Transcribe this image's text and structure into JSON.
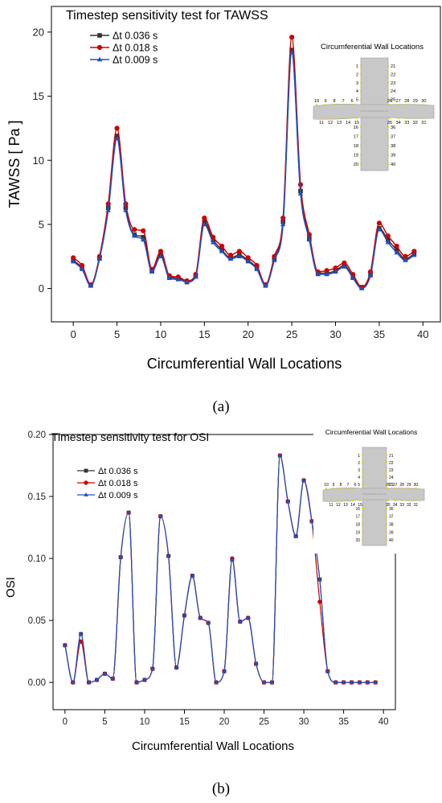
{
  "chart_data": [
    {
      "type": "line",
      "title": "Timestep sensitivity test for TAWSS",
      "xlabel": "Circumferential Wall Locations",
      "ylabel": "TAWSS [ Pa ]",
      "xlim": [
        -2.5,
        42
      ],
      "ylim": [
        -2.6,
        22
      ],
      "xticks": [
        0,
        5,
        10,
        15,
        20,
        25,
        30,
        35,
        40
      ],
      "yticks": [
        0,
        5,
        10,
        15,
        20
      ],
      "tick_labels_x": [
        "0",
        "5",
        "10",
        "15",
        "20",
        "25",
        "30",
        "35",
        "40"
      ],
      "tick_labels_y": [
        "0",
        "5",
        "10",
        "15",
        "20"
      ],
      "legend_position": "top-left",
      "caption": "(a)",
      "inset_title": "Circumferential Wall Locations",
      "x": [
        0,
        1,
        2,
        3,
        4,
        5,
        6,
        7,
        8,
        9,
        10,
        11,
        12,
        13,
        14,
        15,
        16,
        17,
        18,
        19,
        20,
        21,
        22,
        23,
        24,
        25,
        26,
        27,
        28,
        29,
        30,
        31,
        32,
        33,
        34,
        35,
        36,
        37,
        38,
        39
      ],
      "series": [
        {
          "name": "Δt 0.036 s",
          "color": "#333333",
          "marker": "square",
          "values": [
            2.2,
            1.6,
            0.3,
            2.4,
            6.3,
            11.9,
            6.3,
            4.2,
            4.0,
            1.4,
            2.6,
            0.9,
            0.8,
            0.5,
            1.0,
            5.2,
            3.8,
            3.0,
            2.4,
            2.6,
            2.2,
            1.6,
            0.3,
            2.3,
            5.2,
            18.6,
            7.6,
            3.9,
            1.2,
            1.2,
            1.4,
            1.8,
            0.9,
            0.1,
            1.1,
            4.7,
            3.8,
            3.0,
            2.3,
            2.7
          ]
        },
        {
          "name": "Δt 0.018 s",
          "color": "#d00000",
          "marker": "circle",
          "values": [
            2.4,
            1.8,
            0.3,
            2.5,
            6.6,
            12.5,
            6.6,
            4.6,
            4.5,
            1.5,
            2.9,
            1.0,
            0.9,
            0.6,
            1.1,
            5.5,
            4.0,
            3.3,
            2.6,
            2.9,
            2.4,
            1.8,
            0.3,
            2.5,
            5.5,
            19.6,
            8.1,
            4.2,
            1.3,
            1.4,
            1.6,
            2.0,
            1.1,
            0.1,
            1.3,
            5.1,
            4.1,
            3.3,
            2.5,
            2.9
          ]
        },
        {
          "name": "Δt 0.009 s",
          "color": "#2050c0",
          "marker": "triangle",
          "values": [
            2.1,
            1.5,
            0.2,
            2.3,
            6.1,
            11.7,
            6.1,
            4.1,
            3.8,
            1.3,
            2.5,
            0.8,
            0.7,
            0.5,
            0.9,
            5.0,
            3.6,
            2.9,
            2.3,
            2.5,
            2.1,
            1.5,
            0.2,
            2.2,
            5.0,
            18.4,
            7.4,
            3.8,
            1.1,
            1.1,
            1.3,
            1.7,
            0.8,
            0.0,
            1.0,
            4.6,
            3.6,
            2.8,
            2.2,
            2.6
          ]
        }
      ]
    },
    {
      "type": "line",
      "title": "Timestep sensitivity test for OSI",
      "xlabel": "Circumferential Wall Locations",
      "ylabel": "OSI",
      "xlim": [
        -1.5,
        41.5
      ],
      "ylim": [
        -0.022,
        0.2
      ],
      "xticks": [
        0,
        5,
        10,
        15,
        20,
        25,
        30,
        35,
        40
      ],
      "yticks": [
        0.0,
        0.05,
        0.1,
        0.15,
        0.2
      ],
      "tick_labels_x": [
        "0",
        "5",
        "10",
        "15",
        "20",
        "25",
        "30",
        "35",
        "40"
      ],
      "tick_labels_y": [
        "0.00",
        "0.05",
        "0.10",
        "0.15",
        "0.20"
      ],
      "legend_position": "top-left",
      "caption": "(b)",
      "inset_title": "Circumferential Wall Locations",
      "x": [
        0,
        1,
        2,
        3,
        4,
        5,
        6,
        7,
        8,
        9,
        10,
        11,
        12,
        13,
        14,
        15,
        16,
        17,
        18,
        19,
        20,
        21,
        22,
        23,
        24,
        25,
        26,
        27,
        28,
        29,
        30,
        31,
        32,
        33,
        34,
        35,
        36,
        37,
        38,
        39
      ],
      "series": [
        {
          "name": "Δt 0.036 s",
          "color": "#333333",
          "marker": "square",
          "values": [
            0.03,
            0.0,
            0.039,
            0.0,
            0.002,
            0.007,
            0.003,
            0.101,
            0.137,
            0.0,
            0.002,
            0.011,
            0.134,
            0.102,
            0.012,
            0.054,
            0.086,
            0.052,
            0.048,
            0.0,
            0.009,
            0.099,
            0.049,
            0.052,
            0.015,
            0.0,
            0.0,
            0.183,
            0.146,
            0.118,
            0.163,
            0.13,
            0.083,
            0.009,
            0.0,
            0.0,
            0.0,
            0.0,
            0.0,
            0.0
          ]
        },
        {
          "name": "Δt 0.018 s",
          "color": "#d00000",
          "marker": "circle",
          "values": [
            0.03,
            0.0,
            0.033,
            0.0,
            0.002,
            0.007,
            0.003,
            0.101,
            0.137,
            0.0,
            0.002,
            0.011,
            0.134,
            0.102,
            0.012,
            0.054,
            0.086,
            0.052,
            0.048,
            0.0,
            0.009,
            0.1,
            0.049,
            0.052,
            0.015,
            0.0,
            0.0,
            0.183,
            0.146,
            0.118,
            0.163,
            0.13,
            0.065,
            0.009,
            0.0,
            0.0,
            0.0,
            0.0,
            0.0,
            0.0
          ]
        },
        {
          "name": "Δt 0.009 s",
          "color": "#2050c0",
          "marker": "triangle",
          "values": [
            0.03,
            0.0,
            0.039,
            0.0,
            0.002,
            0.007,
            0.003,
            0.101,
            0.137,
            0.0,
            0.002,
            0.011,
            0.134,
            0.102,
            0.012,
            0.054,
            0.086,
            0.052,
            0.048,
            0.0,
            0.009,
            0.099,
            0.049,
            0.052,
            0.015,
            0.0,
            0.0,
            0.183,
            0.146,
            0.118,
            0.163,
            0.13,
            0.083,
            0.009,
            0.0,
            0.0,
            0.0,
            0.0,
            0.0,
            0.0
          ]
        }
      ]
    }
  ],
  "inset_numbers": {
    "left_col": [
      "1",
      "2",
      "3",
      "4",
      "5"
    ],
    "right_col": [
      "21",
      "22",
      "23",
      "24",
      "25"
    ],
    "left_arm": [
      "10",
      "9",
      "8",
      "7",
      "6"
    ],
    "left_arm_bottom": [
      "11",
      "12",
      "13",
      "14",
      "15"
    ],
    "right_arm": [
      "26",
      "27",
      "28",
      "29",
      "30"
    ],
    "right_arm_bottom": [
      "35",
      "34",
      "33",
      "32",
      "31"
    ],
    "lower_left": [
      "16",
      "17",
      "18",
      "19",
      "20"
    ],
    "lower_right": [
      "36",
      "37",
      "38",
      "39",
      "40"
    ]
  }
}
